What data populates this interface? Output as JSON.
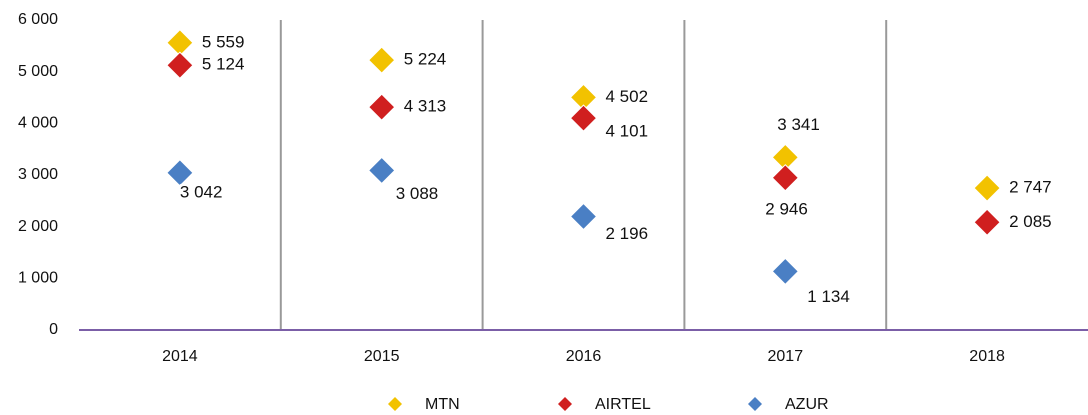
{
  "chart_data": {
    "type": "scatter",
    "categories": [
      "2014",
      "2015",
      "2016",
      "2017",
      "2018"
    ],
    "series": [
      {
        "name": "MTN",
        "color": "#f2c200",
        "values": [
          5559,
          5224,
          4502,
          3341,
          2747
        ],
        "value_labels": [
          "5 559",
          "5 224",
          "4 502",
          "3 341",
          "2 747"
        ]
      },
      {
        "name": "AIRTEL",
        "color": "#d01f1f",
        "values": [
          5124,
          4313,
          4101,
          2946,
          2085
        ],
        "value_labels": [
          "5 124",
          "4 313",
          "4 101",
          "2 946",
          "2 085"
        ]
      },
      {
        "name": "AZUR",
        "color": "#4a7fc4",
        "values": [
          3042,
          3088,
          2196,
          1134,
          null
        ],
        "value_labels": [
          "3 042",
          "3 088",
          "2 196",
          "1 134",
          null
        ]
      }
    ],
    "ylim": [
      0,
      6000
    ],
    "yticks": [
      {
        "value": 0,
        "label": "0"
      },
      {
        "value": 1000,
        "label": "1 000"
      },
      {
        "value": 2000,
        "label": "2 000"
      },
      {
        "value": 3000,
        "label": "3 000"
      },
      {
        "value": 4000,
        "label": "4 000"
      },
      {
        "value": 5000,
        "label": "5 000"
      },
      {
        "value": 6000,
        "label": "6 000"
      }
    ],
    "grid": false,
    "legend": "bottom"
  }
}
